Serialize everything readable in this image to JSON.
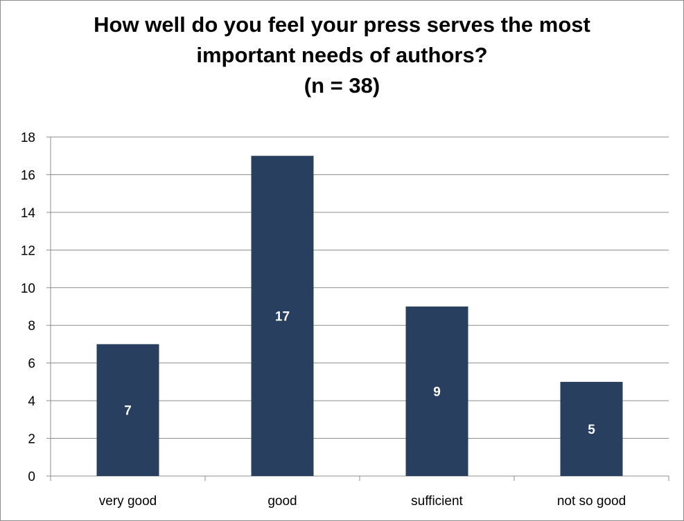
{
  "chart_data": {
    "type": "bar",
    "title_lines": [
      "How well do you feel your press serves the most",
      "important needs of authors?",
      "(n = 38)"
    ],
    "categories": [
      "very good",
      "good",
      "sufficient",
      "not so good"
    ],
    "values": [
      7,
      17,
      9,
      5
    ],
    "data_labels": [
      "7",
      "17",
      "9",
      "5"
    ],
    "xlabel": "",
    "ylabel": "",
    "ylim": [
      0,
      18
    ],
    "yticks": [
      0,
      2,
      4,
      6,
      8,
      10,
      12,
      14,
      16,
      18
    ],
    "grid": true,
    "legend": "none",
    "colors": {
      "bar": "#283F60",
      "gridline": "#8C8C8C",
      "data_label": "#FFFFFF"
    }
  }
}
